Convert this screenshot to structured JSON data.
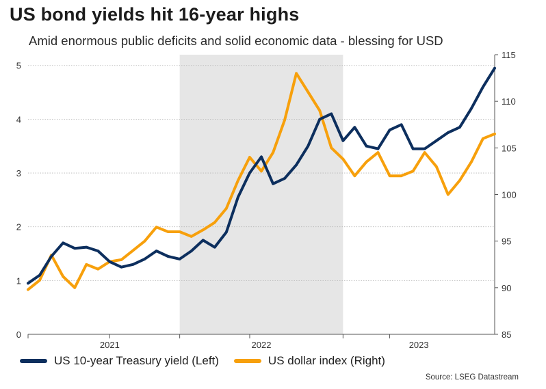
{
  "title": "US bond yields hit 16-year highs",
  "subtitle": "Amid enormous public deficits and solid economic data - blessing for USD",
  "source": "Source: LSEG Datastream",
  "colors": {
    "yield": "#0d2f5e",
    "dollar": "#f7a00c",
    "shade": "#e6e6e6",
    "grid": "#b5b5b5"
  },
  "chart_data": {
    "type": "line",
    "title": "US bond yields hit 16-year highs",
    "subtitle": "Amid enormous public deficits and solid economic data - blessing for USD",
    "x_ticks": [
      "2021",
      "2022",
      "2023"
    ],
    "y_left": {
      "ticks": [
        "0",
        "1",
        "2",
        "3",
        "4",
        "5"
      ],
      "range": [
        0,
        5.2
      ]
    },
    "y_right": {
      "ticks": [
        "85",
        "90",
        "95",
        "100",
        "105",
        "110",
        "115"
      ],
      "range": [
        85,
        115
      ]
    },
    "x_range": [
      "2020-06",
      "2023-10"
    ],
    "shaded_period": [
      "2021-07",
      "2022-09"
    ],
    "grid": "horizontal dotted",
    "legend_position": "bottom",
    "series": [
      {
        "name": "US 10-year Treasury yield (Left)",
        "axis": "left",
        "color": "#0d2f5e",
        "x": [
          "2020-06",
          "2020-07",
          "2020-08",
          "2020-09",
          "2020-10",
          "2020-11",
          "2020-12",
          "2021-01",
          "2021-02",
          "2021-03",
          "2021-04",
          "2021-05",
          "2021-06",
          "2021-07",
          "2021-08",
          "2021-09",
          "2021-10",
          "2021-11",
          "2021-12",
          "2022-01",
          "2022-02",
          "2022-03",
          "2022-04",
          "2022-05",
          "2022-06",
          "2022-07",
          "2022-08",
          "2022-09",
          "2022-10",
          "2022-11",
          "2022-12",
          "2023-01",
          "2023-02",
          "2023-03",
          "2023-04",
          "2023-05",
          "2023-06",
          "2023-07",
          "2023-08",
          "2023-09",
          "2023-10"
        ],
        "values": [
          0.95,
          1.1,
          1.45,
          1.7,
          1.6,
          1.62,
          1.55,
          1.35,
          1.25,
          1.3,
          1.4,
          1.55,
          1.45,
          1.4,
          1.55,
          1.75,
          1.62,
          1.9,
          2.55,
          3.0,
          3.3,
          2.8,
          2.9,
          3.15,
          3.5,
          4.0,
          4.1,
          3.6,
          3.85,
          3.5,
          3.45,
          3.8,
          3.9,
          3.45,
          3.45,
          3.6,
          3.75,
          3.85,
          4.2,
          4.6,
          4.95
        ]
      },
      {
        "name": "US dollar index (Right)",
        "axis": "right",
        "color": "#f7a00c",
        "x": [
          "2020-06",
          "2020-07",
          "2020-08",
          "2020-09",
          "2020-10",
          "2020-11",
          "2020-12",
          "2021-01",
          "2021-02",
          "2021-03",
          "2021-04",
          "2021-05",
          "2021-06",
          "2021-07",
          "2021-08",
          "2021-09",
          "2021-10",
          "2021-11",
          "2021-12",
          "2022-01",
          "2022-02",
          "2022-03",
          "2022-04",
          "2022-05",
          "2022-06",
          "2022-07",
          "2022-08",
          "2022-09",
          "2022-10",
          "2022-11",
          "2022-12",
          "2023-01",
          "2023-02",
          "2023-03",
          "2023-04",
          "2023-05",
          "2023-06",
          "2023-07",
          "2023-08",
          "2023-09",
          "2023-10"
        ],
        "values": [
          89.8,
          90.8,
          93.5,
          91.2,
          90,
          92.5,
          92,
          92.8,
          93,
          94,
          95,
          96.5,
          96,
          96,
          95.5,
          96.2,
          97,
          98.5,
          101.5,
          104,
          102.5,
          104.5,
          108,
          113,
          111,
          109,
          105,
          103.8,
          102,
          103.5,
          104.5,
          102,
          102,
          102.5,
          104.5,
          103,
          100,
          101.5,
          103.5,
          106,
          106.5
        ]
      }
    ]
  }
}
